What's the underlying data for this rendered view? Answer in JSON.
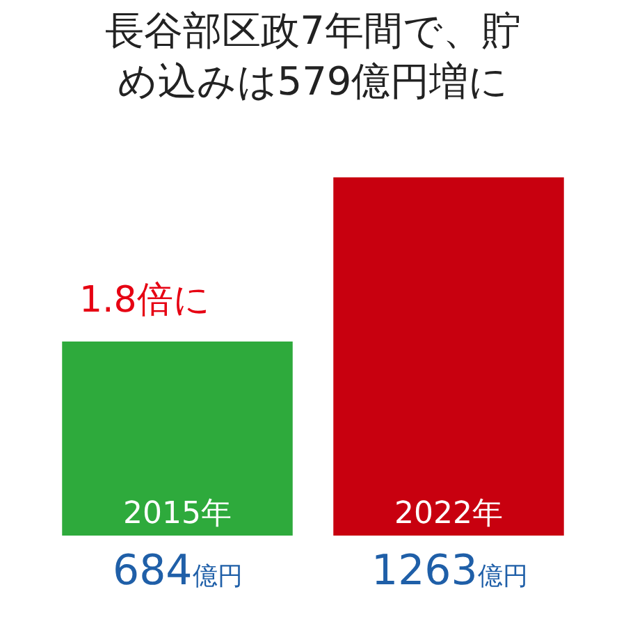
{
  "chart_data": {
    "type": "bar",
    "title": "長谷部区政7年間で、貯め込みは579億円増に",
    "categories": [
      "2015年",
      "2022年"
    ],
    "values": [
      684,
      1263
    ],
    "colors": [
      "#2eaa3c",
      "#c8000f"
    ],
    "value_labels": [
      "684億円",
      "1263億円"
    ],
    "annotations": [
      "1.8倍に"
    ],
    "legend": false
  }
}
